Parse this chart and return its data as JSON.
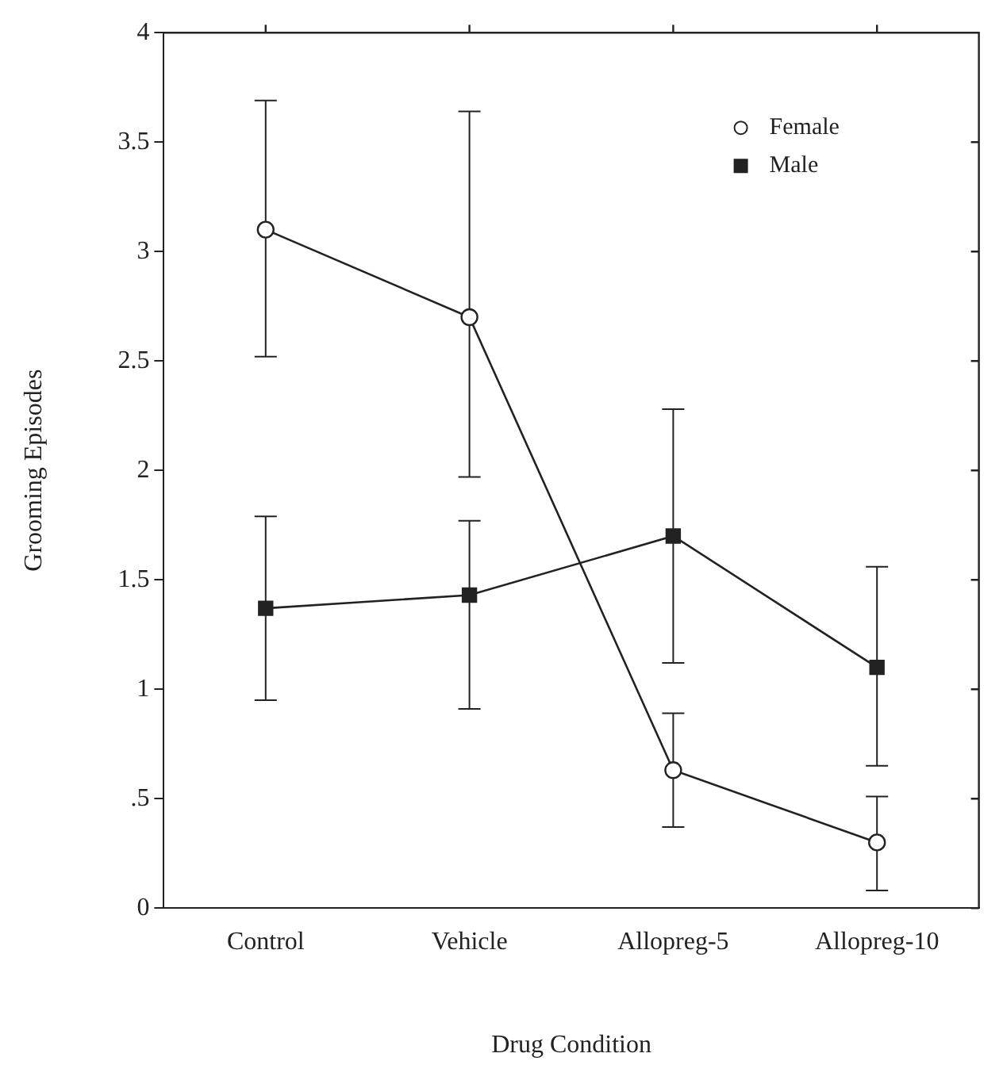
{
  "chart_data": {
    "type": "line",
    "xlabel": "Drug Condition",
    "ylabel": "Grooming Episodes",
    "categories": [
      "Control",
      "Vehicle",
      "Allopreg-5",
      "Allopreg-10"
    ],
    "series": [
      {
        "name": "Female",
        "color": "#222222",
        "marker": "circle",
        "values": [
          3.1,
          2.7,
          0.63,
          0.3
        ],
        "errors": [
          [
            2.52,
            3.69
          ],
          [
            1.97,
            3.64
          ],
          [
            0.37,
            0.89
          ],
          [
            0.08,
            0.51
          ]
        ]
      },
      {
        "name": "Male",
        "color": "#222222",
        "marker": "square",
        "values": [
          1.37,
          1.43,
          1.7,
          1.1
        ],
        "errors": [
          [
            0.95,
            1.79
          ],
          [
            0.91,
            1.77
          ],
          [
            1.12,
            2.28
          ],
          [
            0.65,
            1.56
          ]
        ]
      }
    ],
    "ylim": [
      0,
      4
    ],
    "yticks": [
      0,
      {
        "value": 0.5,
        "label": ".5"
      },
      1,
      1.5,
      2,
      2.5,
      3,
      3.5,
      4
    ],
    "grid": false,
    "legend": "top right",
    "line_style": "solid"
  }
}
